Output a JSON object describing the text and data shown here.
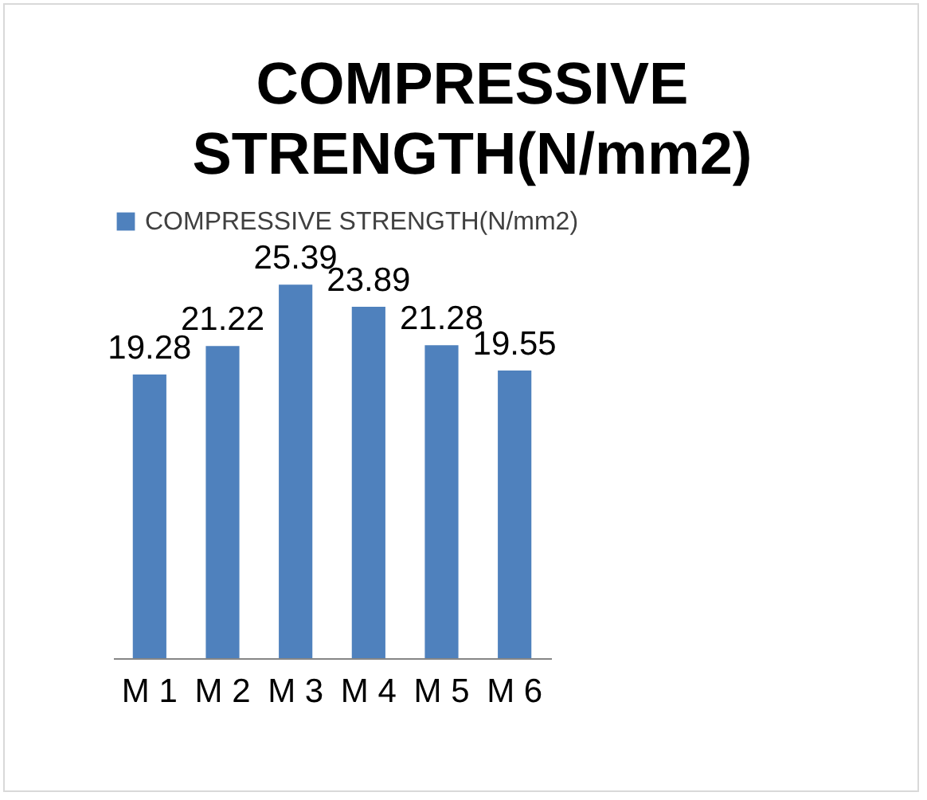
{
  "chart_data": {
    "type": "bar",
    "title": "COMPRESSIVE STRENGTH(N/mm2)",
    "categories": [
      "M 1",
      "M 2",
      "M 3",
      "M 4",
      "M 5",
      "M 6"
    ],
    "series": [
      {
        "name": "COMPRESSIVE STRENGTH(N/mm2)",
        "color": "#4f81bd",
        "values": [
          19.28,
          21.22,
          25.39,
          23.89,
          21.28,
          19.55
        ]
      }
    ],
    "data_labels": true,
    "legend": "top"
  }
}
